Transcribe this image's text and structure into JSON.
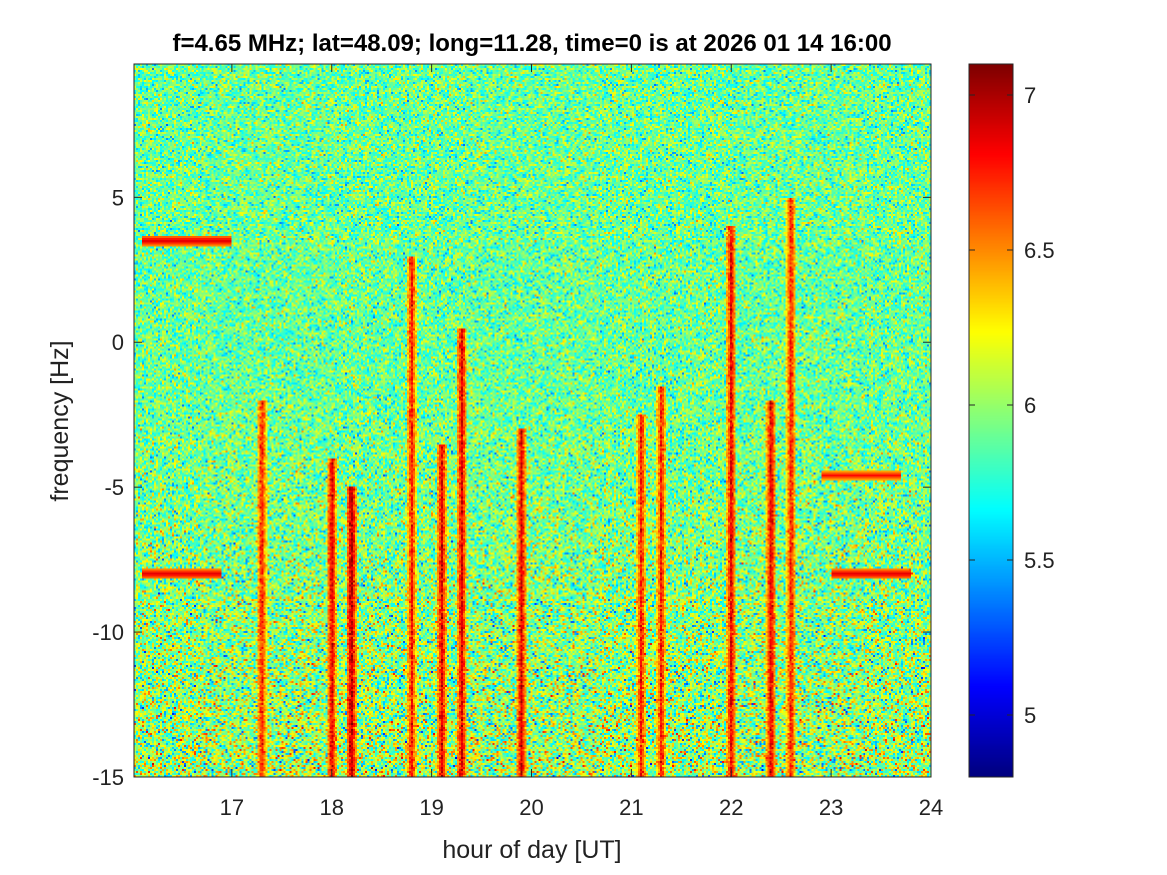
{
  "chart_data": {
    "type": "heatmap",
    "title": "f=4.65 MHz;  lat=48.09; long=11.28, time=0 is at 2026 01 14 16:00",
    "xlabel": "hour of day [UT]",
    "ylabel": "frequency [Hz]",
    "xlim": [
      16.02,
      24.0
    ],
    "ylim": [
      -15,
      9.6
    ],
    "x_ticks": [
      17,
      18,
      19,
      20,
      21,
      22,
      23,
      24
    ],
    "x_tick_labels": [
      "17",
      "18",
      "19",
      "20",
      "21",
      "22",
      "23",
      "24"
    ],
    "y_ticks": [
      5,
      0,
      -5,
      -10,
      -15
    ],
    "y_tick_labels": [
      "5",
      "0",
      "-5",
      "-10",
      "-15"
    ],
    "colorbar": {
      "colormap": "jet",
      "clim": [
        4.8,
        7.1
      ],
      "ticks": [
        7,
        6.5,
        6,
        5.5,
        5
      ],
      "tick_labels": [
        "7",
        "6.5",
        "6",
        "5.5",
        "5"
      ]
    },
    "background_level": 5.9,
    "features": [
      {
        "kind": "streak",
        "x": 17.3,
        "f_top": -2.0,
        "f_bottom": -15,
        "level": 6.8
      },
      {
        "kind": "streak",
        "x": 18.0,
        "f_top": -4.0,
        "f_bottom": -15,
        "level": 6.9
      },
      {
        "kind": "streak",
        "x": 18.2,
        "f_top": -5.0,
        "f_bottom": -15,
        "level": 7.0
      },
      {
        "kind": "streak",
        "x": 18.8,
        "f_top": 3.0,
        "f_bottom": -15,
        "level": 6.8
      },
      {
        "kind": "streak",
        "x": 19.1,
        "f_top": -3.5,
        "f_bottom": -15,
        "level": 6.9
      },
      {
        "kind": "streak",
        "x": 19.3,
        "f_top": 0.5,
        "f_bottom": -15,
        "level": 6.9
      },
      {
        "kind": "streak",
        "x": 19.9,
        "f_top": -3.0,
        "f_bottom": -15,
        "level": 6.9
      },
      {
        "kind": "streak",
        "x": 21.1,
        "f_top": -2.5,
        "f_bottom": -15,
        "level": 6.8
      },
      {
        "kind": "streak",
        "x": 21.3,
        "f_top": -1.5,
        "f_bottom": -15,
        "level": 6.8
      },
      {
        "kind": "streak",
        "x": 22.0,
        "f_top": 4.0,
        "f_bottom": -15,
        "level": 6.9
      },
      {
        "kind": "streak",
        "x": 22.4,
        "f_top": -2.0,
        "f_bottom": -15,
        "level": 6.9
      },
      {
        "kind": "streak",
        "x": 22.6,
        "f_top": 5.0,
        "f_bottom": -15,
        "level": 6.8
      },
      {
        "kind": "line",
        "x_start": 16.1,
        "x_end": 17.0,
        "f": 3.5,
        "level": 6.9
      },
      {
        "kind": "line",
        "x_start": 16.1,
        "x_end": 16.9,
        "f": -8.0,
        "level": 6.9
      },
      {
        "kind": "line",
        "x_start": 22.9,
        "x_end": 23.7,
        "f": -4.6,
        "level": 6.8
      },
      {
        "kind": "line",
        "x_start": 23.0,
        "x_end": 23.8,
        "f": -8.0,
        "level": 6.9
      }
    ]
  }
}
